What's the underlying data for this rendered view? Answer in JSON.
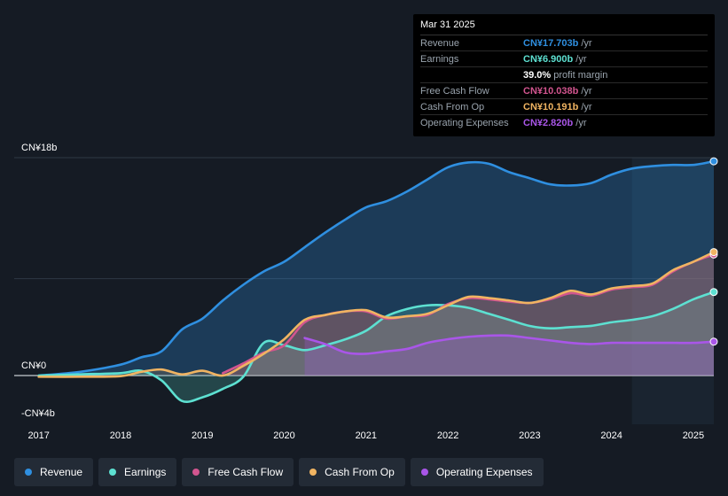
{
  "tooltip": {
    "date": "Mar 31 2025",
    "rows": [
      {
        "label": "Revenue",
        "value": "CN¥17.703b",
        "suffix": "/yr",
        "color": "#2f8fe0"
      },
      {
        "label": "Earnings",
        "value": "CN¥6.900b",
        "suffix": "/yr",
        "color": "#5de0d1"
      },
      {
        "label": "",
        "value": "39.0%",
        "suffix": "profit margin",
        "color": "#ffffff"
      },
      {
        "label": "Free Cash Flow",
        "value": "CN¥10.038b",
        "suffix": "/yr",
        "color": "#d2558f"
      },
      {
        "label": "Cash From Op",
        "value": "CN¥10.191b",
        "suffix": "/yr",
        "color": "#f0b462"
      },
      {
        "label": "Operating Expenses",
        "value": "CN¥2.820b",
        "suffix": "/yr",
        "color": "#a956e8"
      }
    ]
  },
  "legend": [
    {
      "label": "Revenue",
      "color": "#2f8fe0"
    },
    {
      "label": "Earnings",
      "color": "#5de0d1"
    },
    {
      "label": "Free Cash Flow",
      "color": "#d2558f"
    },
    {
      "label": "Cash From Op",
      "color": "#f0b462"
    },
    {
      "label": "Operating Expenses",
      "color": "#a956e8"
    }
  ],
  "chart_data": {
    "type": "area",
    "title": "",
    "xlabel": "",
    "ylabel": "",
    "ylim": [
      -4,
      18
    ],
    "xlim": [
      2016.7,
      2025.25
    ],
    "y_axis_labels": [
      {
        "value": 18,
        "text": "CN¥18b"
      },
      {
        "value": 0,
        "text": "CN¥0"
      },
      {
        "value": -4,
        "text": "-CN¥4b"
      }
    ],
    "x_ticks": [
      "2017",
      "2018",
      "2019",
      "2020",
      "2021",
      "2022",
      "2023",
      "2024",
      "2025"
    ],
    "x_tick_values": [
      2017,
      2018,
      2019,
      2020,
      2021,
      2022,
      2023,
      2024,
      2025
    ],
    "past_data_start": 2024.25,
    "series": [
      {
        "name": "Revenue",
        "color": "#2f8fe0",
        "x": [
          2017.0,
          2017.5,
          2018.0,
          2018.25,
          2018.5,
          2018.75,
          2019.0,
          2019.25,
          2019.5,
          2019.75,
          2020.0,
          2020.25,
          2020.5,
          2020.75,
          2021.0,
          2021.25,
          2021.5,
          2021.75,
          2022.0,
          2022.25,
          2022.5,
          2022.75,
          2023.0,
          2023.25,
          2023.5,
          2023.75,
          2024.0,
          2024.25,
          2024.5,
          2024.75,
          2025.0,
          2025.25
        ],
        "values": [
          0.0,
          0.3,
          0.9,
          1.5,
          2.0,
          3.8,
          4.7,
          6.2,
          7.5,
          8.6,
          9.4,
          10.6,
          11.8,
          12.9,
          13.9,
          14.4,
          15.2,
          16.2,
          17.2,
          17.6,
          17.5,
          16.8,
          16.3,
          15.8,
          15.7,
          15.9,
          16.6,
          17.1,
          17.3,
          17.4,
          17.4,
          17.7
        ]
      },
      {
        "name": "Earnings",
        "color": "#5de0d1",
        "x": [
          2017.0,
          2017.5,
          2018.0,
          2018.25,
          2018.5,
          2018.75,
          2019.0,
          2019.25,
          2019.5,
          2019.75,
          2020.0,
          2020.25,
          2020.5,
          2020.75,
          2021.0,
          2021.25,
          2021.5,
          2021.75,
          2022.0,
          2022.25,
          2022.5,
          2022.75,
          2023.0,
          2023.25,
          2023.5,
          2023.75,
          2024.0,
          2024.25,
          2024.5,
          2024.75,
          2025.0,
          2025.25
        ],
        "values": [
          0.0,
          0.1,
          0.2,
          0.4,
          -0.4,
          -2.1,
          -1.8,
          -1.1,
          -0.1,
          2.7,
          2.5,
          2.1,
          2.5,
          3.0,
          3.7,
          4.9,
          5.5,
          5.8,
          5.8,
          5.6,
          5.1,
          4.6,
          4.1,
          3.9,
          4.0,
          4.1,
          4.4,
          4.6,
          4.9,
          5.5,
          6.3,
          6.9
        ]
      },
      {
        "name": "Free Cash Flow",
        "color": "#d2558f",
        "x": [
          2019.25,
          2019.5,
          2019.75,
          2020.0,
          2020.25,
          2020.5,
          2020.75,
          2021.0,
          2021.25,
          2021.5,
          2021.75,
          2022.0,
          2022.25,
          2022.5,
          2022.75,
          2023.0,
          2023.25,
          2023.5,
          2023.75,
          2024.0,
          2024.25,
          2024.5,
          2024.75,
          2025.0,
          2025.25
        ],
        "values": [
          0.2,
          1.0,
          1.9,
          2.5,
          4.4,
          5.0,
          5.3,
          5.3,
          4.7,
          4.9,
          5.0,
          5.9,
          6.4,
          6.3,
          6.1,
          6.0,
          6.3,
          6.8,
          6.6,
          7.1,
          7.3,
          7.5,
          8.6,
          9.4,
          10.0
        ]
      },
      {
        "name": "Cash From Op",
        "color": "#f0b462",
        "x": [
          2017.0,
          2017.5,
          2018.0,
          2018.25,
          2018.5,
          2018.75,
          2019.0,
          2019.25,
          2019.5,
          2019.75,
          2020.0,
          2020.25,
          2020.5,
          2020.75,
          2021.0,
          2021.25,
          2021.5,
          2021.75,
          2022.0,
          2022.25,
          2022.5,
          2022.75,
          2023.0,
          2023.25,
          2023.5,
          2023.75,
          2024.0,
          2024.25,
          2024.5,
          2024.75,
          2025.0,
          2025.25
        ],
        "values": [
          -0.1,
          -0.1,
          -0.05,
          0.3,
          0.5,
          0.1,
          0.4,
          0.0,
          0.8,
          1.8,
          3.0,
          4.6,
          5.0,
          5.3,
          5.4,
          4.8,
          4.9,
          5.1,
          5.8,
          6.5,
          6.4,
          6.2,
          6.0,
          6.4,
          7.0,
          6.7,
          7.2,
          7.4,
          7.6,
          8.7,
          9.4,
          10.2
        ]
      },
      {
        "name": "Operating Expenses",
        "color": "#a956e8",
        "x": [
          2020.25,
          2020.5,
          2020.75,
          2021.0,
          2021.25,
          2021.5,
          2021.75,
          2022.0,
          2022.25,
          2022.5,
          2022.75,
          2023.0,
          2023.25,
          2023.5,
          2023.75,
          2024.0,
          2024.25,
          2024.5,
          2024.75,
          2025.0,
          2025.25
        ],
        "values": [
          3.1,
          2.6,
          1.9,
          1.8,
          2.0,
          2.2,
          2.7,
          3.0,
          3.2,
          3.3,
          3.3,
          3.1,
          2.9,
          2.7,
          2.6,
          2.7,
          2.7,
          2.7,
          2.7,
          2.7,
          2.8
        ]
      }
    ]
  }
}
